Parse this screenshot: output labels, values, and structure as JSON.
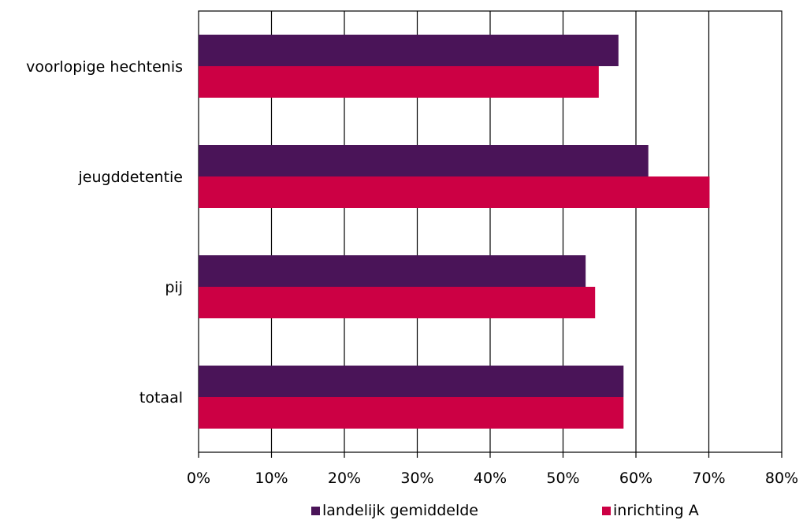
{
  "chart_data": {
    "type": "bar",
    "orientation": "horizontal",
    "categories": [
      "voorlopige hechtenis",
      "jeugddetentie",
      "pij",
      "totaal"
    ],
    "series": [
      {
        "name": "landelijk gemiddelde",
        "color": "#4a1458",
        "values": [
          57.6,
          61.7,
          53.1,
          58.3
        ]
      },
      {
        "name": "inrichting A",
        "color": "#cc0044",
        "values": [
          54.9,
          70.1,
          54.4,
          58.3
        ]
      }
    ],
    "xlim": [
      0,
      80
    ],
    "xticks": [
      "0%",
      "10%",
      "20%",
      "30%",
      "40%",
      "50%",
      "60%",
      "70%",
      "80%"
    ],
    "grid": true,
    "legend_position": "bottom"
  }
}
